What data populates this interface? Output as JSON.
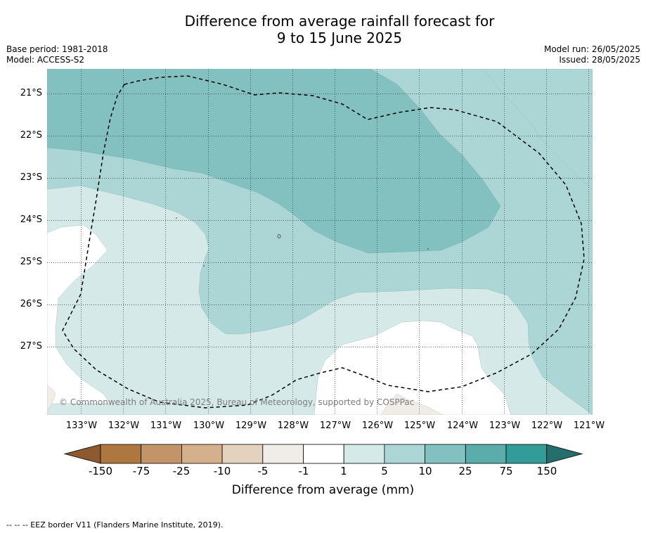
{
  "title": {
    "line1": "Difference from average rainfall forecast for",
    "line2": "9 to 15 June 2025"
  },
  "meta": {
    "base_period": "Base period: 1981-2018",
    "model": "Model: ACCESS-S2",
    "model_run": "Model run: 26/05/2025",
    "issued": "Issued: 28/05/2025"
  },
  "map": {
    "lat_labels": [
      "21°S",
      "22°S",
      "23°S",
      "24°S",
      "25°S",
      "26°S",
      "27°S"
    ],
    "lon_labels": [
      "133°W",
      "132°W",
      "131°W",
      "130°W",
      "129°W",
      "128°W",
      "127°W",
      "126°W",
      "125°W",
      "124°W",
      "123°W",
      "122°W",
      "121°W"
    ],
    "lon_range": [
      "133.8°W",
      "120.9°W"
    ],
    "lat_range": [
      "20.4°S",
      "28.6°S"
    ],
    "gridlines": true,
    "eez_border_shown": true,
    "copyright": "© Commonwealth of Australia 2025, Bureau of Meteorology, supported by COSPPac"
  },
  "colorbar": {
    "labels": [
      "-150",
      "-75",
      "-25",
      "-10",
      "-5",
      "-1",
      "1",
      "5",
      "10",
      "25",
      "75",
      "150"
    ],
    "colors": [
      "#8c5a2e",
      "#ae7740",
      "#c29468",
      "#d4b08d",
      "#e3d2be",
      "#f0ece7",
      "#ffffff",
      "#d5e9e8",
      "#acd6d5",
      "#83c1c0",
      "#5aadab",
      "#329c98",
      "#246f6c"
    ],
    "title": "Difference from average (mm)"
  },
  "legend_footnote": "--  --  -- EEZ border V11 (Flanders Marine Institute, 2019)."
}
